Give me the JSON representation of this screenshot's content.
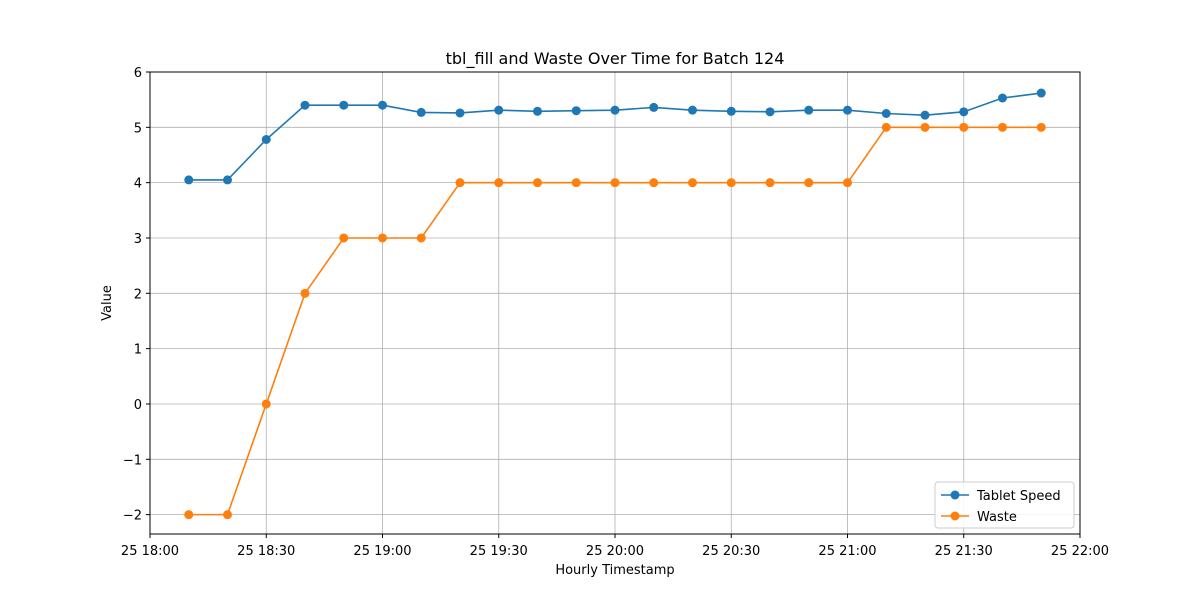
{
  "chart_data": {
    "type": "line",
    "title": "tbl_fill and Waste Over Time for Batch 124",
    "xlabel": "Hourly Timestamp",
    "ylabel": "Value",
    "x": [
      "18:10",
      "18:20",
      "18:30",
      "18:40",
      "18:50",
      "19:00",
      "19:10",
      "19:20",
      "19:30",
      "19:40",
      "19:50",
      "20:00",
      "20:10",
      "20:20",
      "20:30",
      "20:40",
      "20:50",
      "21:00",
      "21:10",
      "21:20",
      "21:30",
      "21:40",
      "21:50"
    ],
    "xlim": [
      "18:00",
      "22:00"
    ],
    "ylim": [
      -2.35,
      6.0
    ],
    "x_ticks": [
      {
        "value": "18:00",
        "label": "25 18:00"
      },
      {
        "value": "18:30",
        "label": "25 18:30"
      },
      {
        "value": "19:00",
        "label": "25 19:00"
      },
      {
        "value": "19:30",
        "label": "25 19:30"
      },
      {
        "value": "20:00",
        "label": "25 20:00"
      },
      {
        "value": "20:30",
        "label": "25 20:30"
      },
      {
        "value": "21:00",
        "label": "25 21:00"
      },
      {
        "value": "21:30",
        "label": "25 21:30"
      },
      {
        "value": "22:00",
        "label": "25 22:00"
      }
    ],
    "y_ticks": [
      {
        "value": -2,
        "label": "−2"
      },
      {
        "value": -1,
        "label": "−1"
      },
      {
        "value": 0,
        "label": "0"
      },
      {
        "value": 1,
        "label": "1"
      },
      {
        "value": 2,
        "label": "2"
      },
      {
        "value": 3,
        "label": "3"
      },
      {
        "value": 4,
        "label": "4"
      },
      {
        "value": 5,
        "label": "5"
      },
      {
        "value": 6,
        "label": "6"
      }
    ],
    "grid": true,
    "legend_position": "bottom-right",
    "series": [
      {
        "name": "Tablet Speed",
        "color": "#1f77b4",
        "values": [
          4.05,
          4.05,
          4.78,
          5.4,
          5.4,
          5.4,
          5.27,
          5.26,
          5.31,
          5.29,
          5.3,
          5.31,
          5.36,
          5.31,
          5.29,
          5.28,
          5.31,
          5.31,
          5.25,
          5.22,
          5.28,
          5.53,
          5.62
        ]
      },
      {
        "name": "Waste",
        "color": "#ff7f0e",
        "values": [
          -2,
          -2,
          0,
          2,
          3,
          3,
          3,
          4,
          4,
          4,
          4,
          4,
          4,
          4,
          4,
          4,
          4,
          4,
          5,
          5,
          5,
          5,
          5
        ]
      }
    ]
  }
}
